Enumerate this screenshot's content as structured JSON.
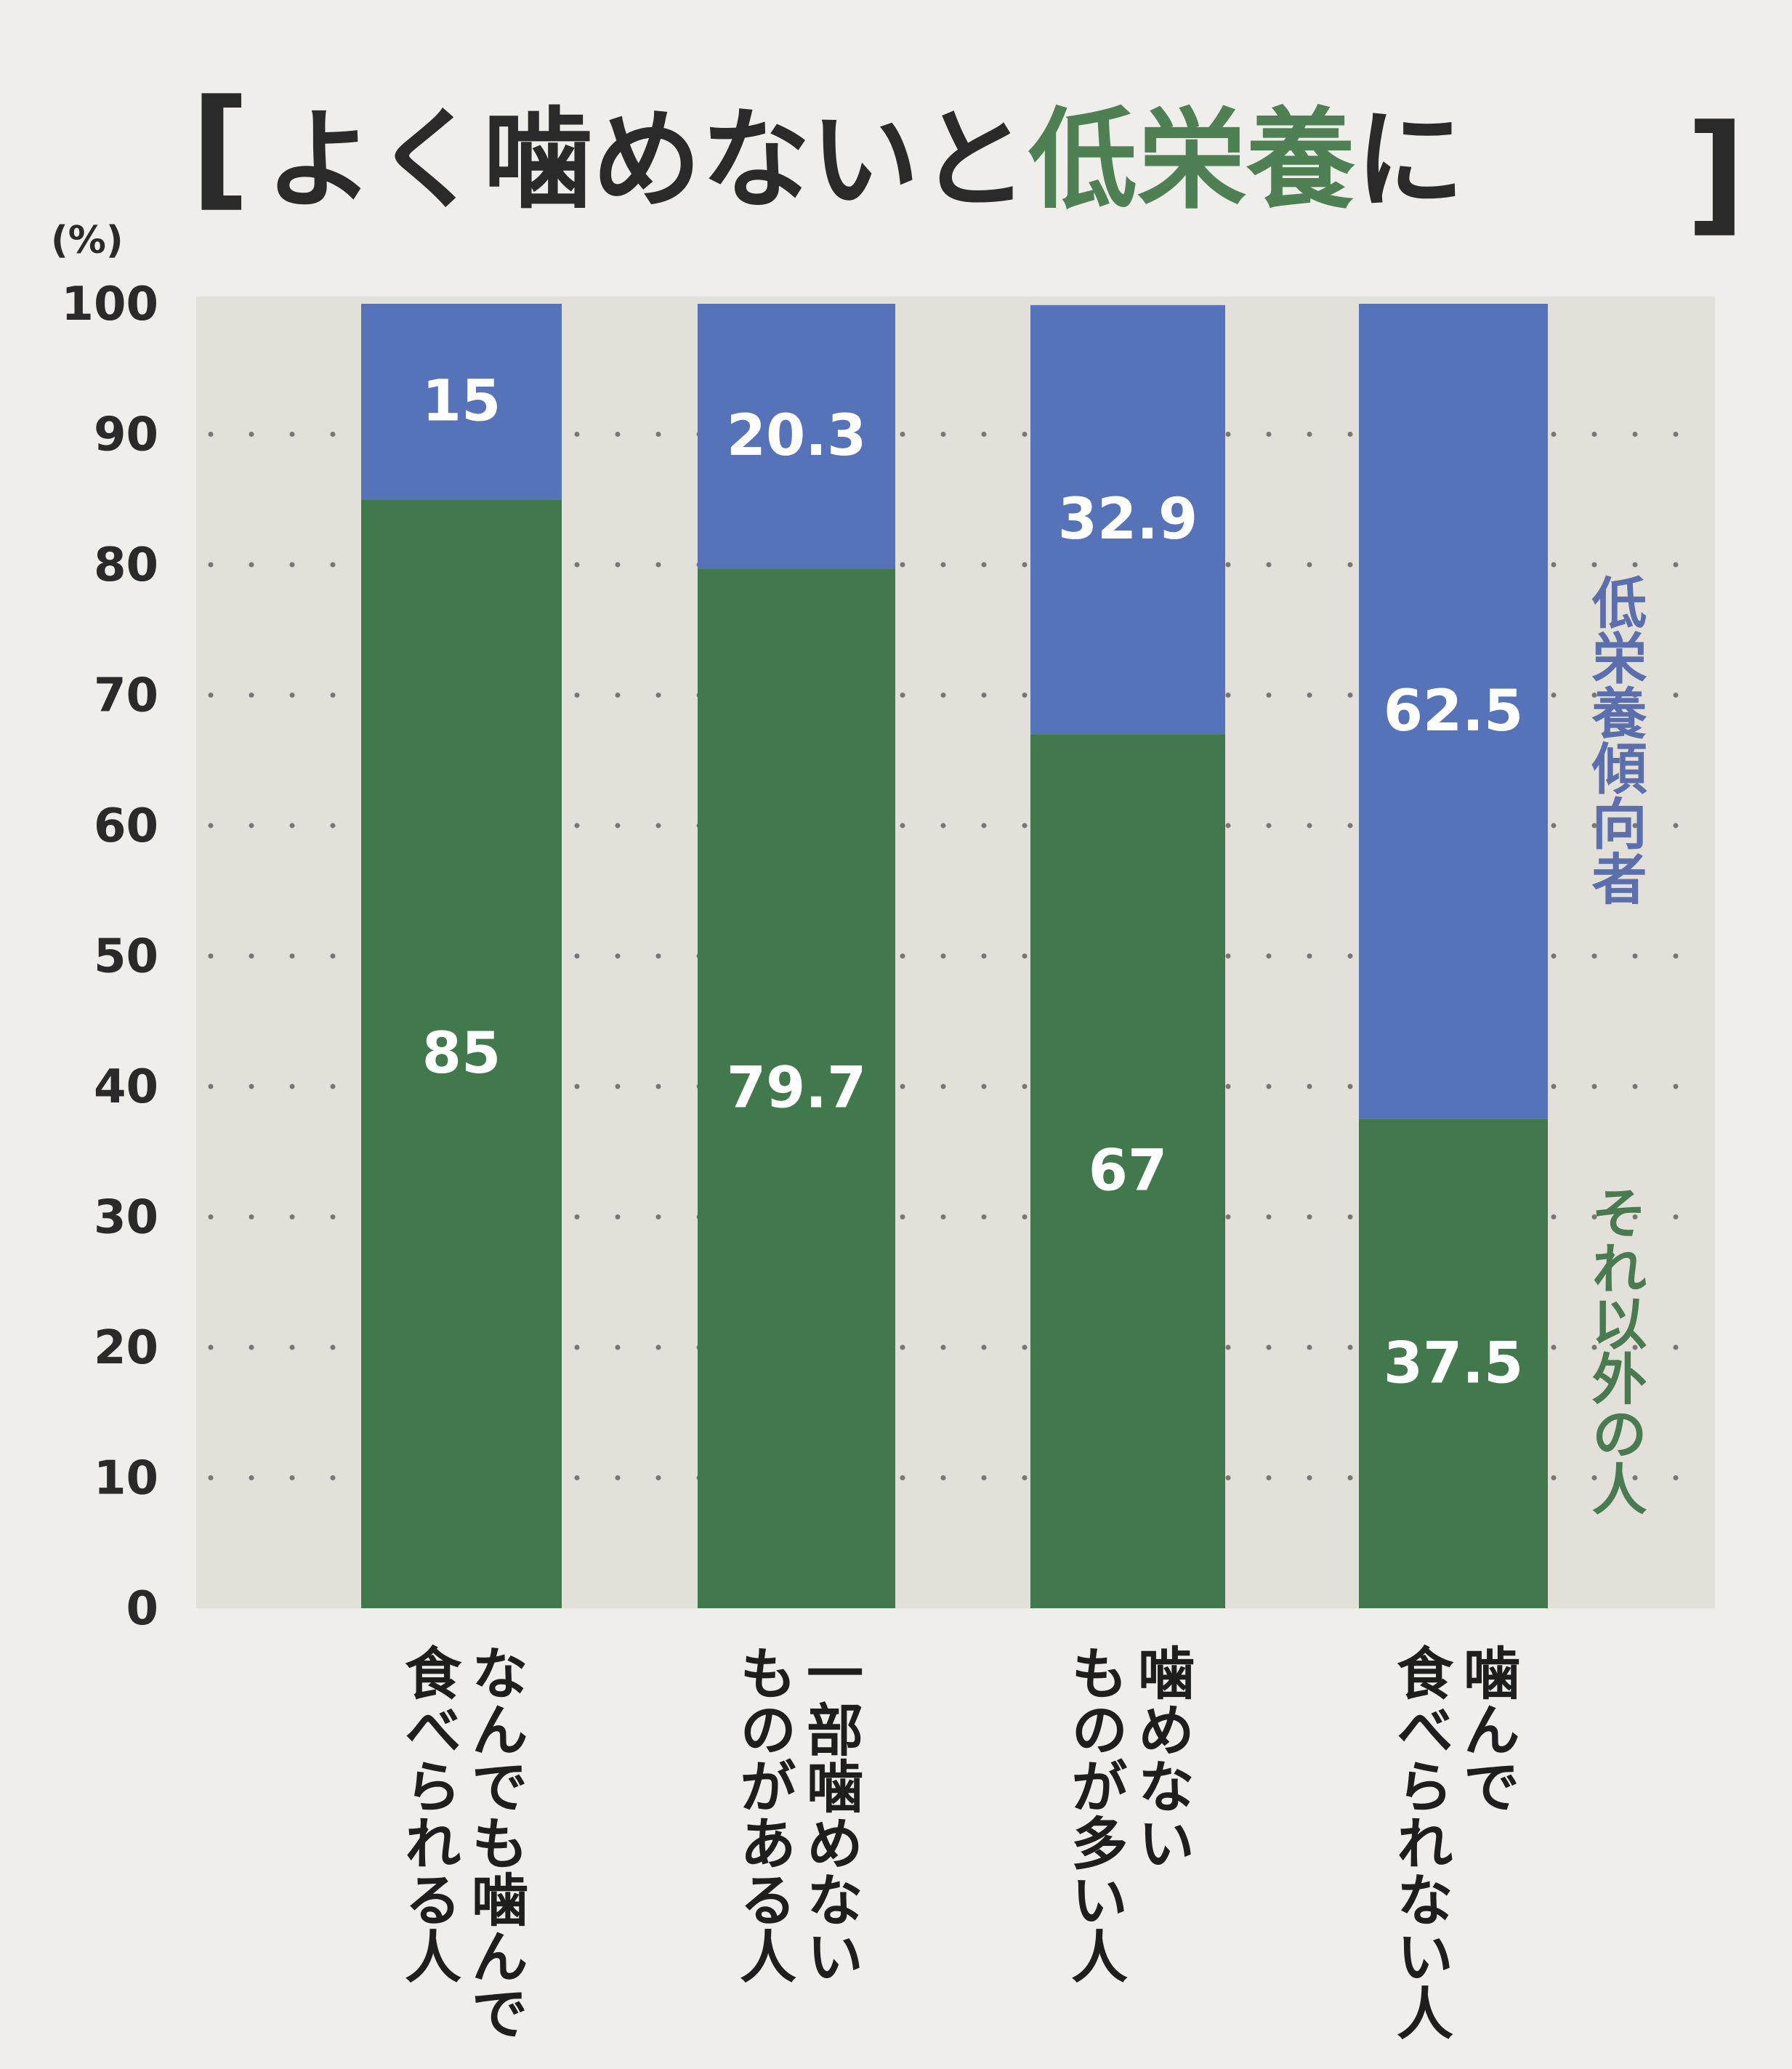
{
  "title": {
    "bracket_left": "[",
    "part1": "よく噛めないと",
    "part2": "低栄養",
    "part3": "に",
    "bracket_right": "]"
  },
  "y_unit": "(%)",
  "colors": {
    "title_dark": "#2a2a2a",
    "title_green": "#4e8054",
    "plot_bg": "#e3dfd9",
    "page_bg": "#efeeea",
    "green": "#41784c",
    "blue": "#5673b9",
    "blue_label": "#5a6fab",
    "green_label": "#4a7a50",
    "grid_dot": "#777777",
    "tick": "#2a2a2a",
    "value_text": "#ffffff",
    "category_text": "#1e1e1e"
  },
  "chart_data": {
    "type": "bar",
    "stacked": true,
    "title": "よく噛めないと低栄養に",
    "ylabel": "(%)",
    "ylim": [
      0,
      100
    ],
    "yticks": [
      0,
      10,
      20,
      30,
      40,
      50,
      60,
      70,
      80,
      90,
      100
    ],
    "grid": "dotted horizontal",
    "categories": [
      [
        "なんでも噛んで",
        "食べられる人"
      ],
      [
        "一部噛めない",
        "ものがある人"
      ],
      [
        "噛めない",
        "ものが多い人"
      ],
      [
        "噛んで",
        "食べられない人"
      ]
    ],
    "series": [
      {
        "name": "それ以外の人",
        "color": "green",
        "values": [
          85,
          79.7,
          67,
          37.5
        ],
        "labels": [
          "85",
          "79.7",
          "67",
          "37.5"
        ]
      },
      {
        "name": "低栄養傾向者",
        "color": "blue",
        "values": [
          15,
          20.3,
          32.9,
          62.5
        ],
        "labels": [
          "15",
          "20.3",
          "32.9",
          "62.5"
        ]
      }
    ],
    "legend_placement": "right, vertical text beside each segment"
  }
}
